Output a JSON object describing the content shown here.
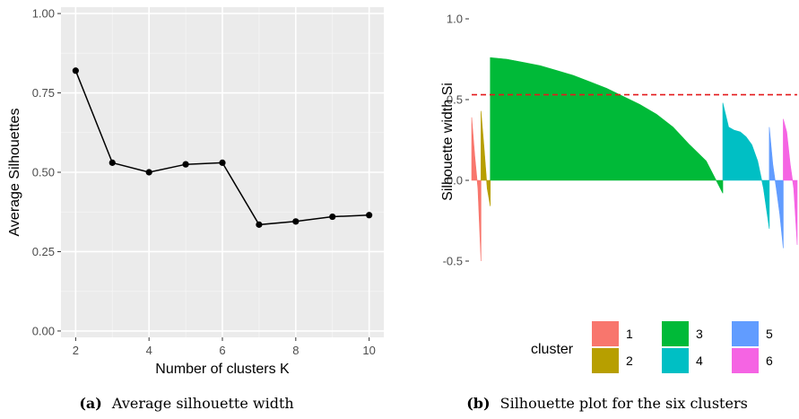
{
  "chart_data": [
    {
      "type": "line",
      "caption_tag": "(a)",
      "caption": "Average silhouette width",
      "xlabel": "Number of clusters K",
      "ylabel": "Average Silhouettes",
      "x_ticks": [
        "2",
        "4",
        "6",
        "8",
        "10"
      ],
      "y_ticks": [
        "0.00",
        "0.25",
        "0.50",
        "0.75",
        "1.00"
      ],
      "xlim": [
        1.6,
        10.4
      ],
      "ylim": [
        -0.02,
        1.02
      ],
      "grid": true,
      "series": [
        {
          "x": [
            2,
            3,
            4,
            5,
            6,
            7,
            8,
            9,
            10
          ],
          "values": [
            0.82,
            0.53,
            0.5,
            0.525,
            0.53,
            0.335,
            0.345,
            0.36,
            0.365
          ]
        }
      ]
    },
    {
      "type": "area",
      "caption_tag": "(b)",
      "caption": "Silhouette plot for the six clusters",
      "ylabel": "Silhouette width Si",
      "y_ticks": [
        "-0.5",
        "0.0",
        "0.5",
        "1.0"
      ],
      "ylim": [
        -0.55,
        1.05
      ],
      "grid": false,
      "reference_line": {
        "y": 0.53,
        "style": "dashed",
        "color": "#e41a1c"
      },
      "legend": {
        "title": "cluster",
        "placement": "bottom",
        "items": [
          {
            "label": "1",
            "color": "#f8766d"
          },
          {
            "label": "2",
            "color": "#b79f00"
          },
          {
            "label": "3",
            "color": "#00ba38"
          },
          {
            "label": "4",
            "color": "#00bfc4"
          },
          {
            "label": "5",
            "color": "#619cff"
          },
          {
            "label": "6",
            "color": "#f564e3"
          }
        ]
      },
      "clusters": [
        {
          "cluster": "1",
          "color": "#f8766d",
          "n": 4,
          "widths": [
            0.39,
            0.15,
            -0.05,
            -0.5
          ]
        },
        {
          "cluster": "2",
          "color": "#b79f00",
          "n": 4,
          "widths": [
            0.43,
            0.2,
            -0.05,
            -0.16
          ]
        },
        {
          "cluster": "3",
          "color": "#00ba38",
          "n": 100,
          "widths": [
            0.76,
            0.75,
            0.73,
            0.71,
            0.68,
            0.65,
            0.61,
            0.57,
            0.52,
            0.47,
            0.41,
            0.33,
            0.22,
            0.12,
            -0.08
          ]
        },
        {
          "cluster": "4",
          "color": "#00bfc4",
          "n": 20,
          "widths": [
            0.48,
            0.33,
            0.31,
            0.3,
            0.27,
            0.22,
            0.12,
            -0.05,
            -0.3
          ]
        },
        {
          "cluster": "5",
          "color": "#619cff",
          "n": 6,
          "widths": [
            0.33,
            0.1,
            -0.05,
            -0.21,
            -0.42
          ]
        },
        {
          "cluster": "6",
          "color": "#f564e3",
          "n": 6,
          "widths": [
            0.38,
            0.3,
            0.1,
            -0.05,
            -0.4
          ]
        }
      ]
    }
  ]
}
